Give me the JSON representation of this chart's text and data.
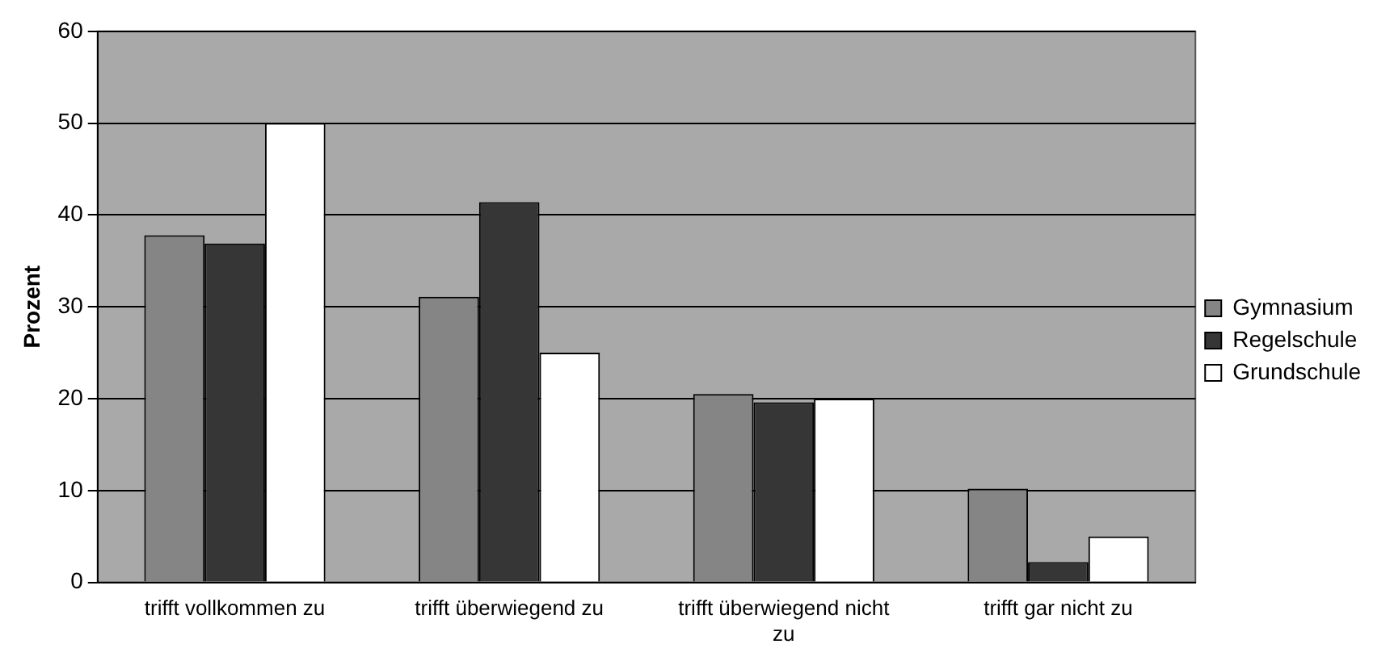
{
  "chart_data": {
    "type": "bar",
    "ylabel": "Prozent",
    "categories": [
      "trifft vollkommen zu",
      "trifft überwiegend zu",
      "trifft überwiegend nicht zu",
      "trifft gar nicht zu"
    ],
    "series": [
      {
        "name": "Gymnasium",
        "color": "#858585",
        "values": [
          37.8,
          31.1,
          20.5,
          10.2
        ]
      },
      {
        "name": "Regelschule",
        "color": "#363636",
        "values": [
          36.9,
          41.4,
          19.6,
          2.2
        ]
      },
      {
        "name": "Grundschule",
        "color": "#ffffff",
        "values": [
          50,
          25,
          20,
          5
        ]
      }
    ],
    "ylim": [
      0,
      60
    ],
    "yticks": [
      0,
      10,
      20,
      30,
      40,
      50,
      60
    ],
    "grid": "y",
    "legend": "right"
  }
}
